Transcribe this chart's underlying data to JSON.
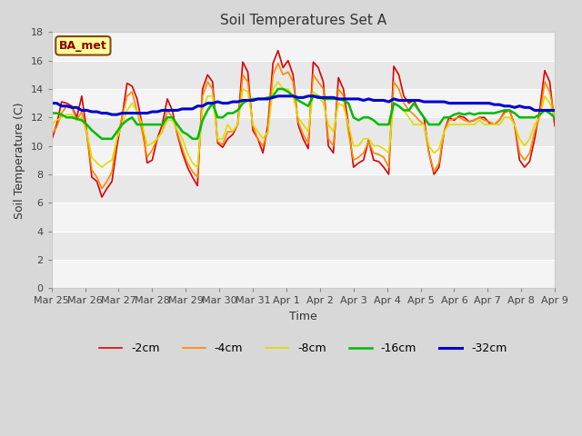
{
  "title": "Soil Temperatures Set A",
  "xlabel": "Time",
  "ylabel": "Soil Temperature (C)",
  "annotation": "BA_met",
  "ylim": [
    0,
    18
  ],
  "yticks": [
    0,
    2,
    4,
    6,
    8,
    10,
    12,
    14,
    16,
    18
  ],
  "fig_bg_color": "#d8d8d8",
  "plot_bg_color_light": "#e8e8e8",
  "plot_bg_color_dark": "#f8f8f8",
  "grid_color": "#ffffff",
  "legend_labels": [
    "-2cm",
    "-4cm",
    "-8cm",
    "-16cm",
    "-32cm"
  ],
  "line_colors": [
    "#dd0000",
    "#ff8800",
    "#dddd00",
    "#00bb00",
    "#0000cc"
  ],
  "line_widths": [
    1.2,
    1.2,
    1.2,
    1.8,
    2.2
  ],
  "x_labels": [
    "Mar 25",
    "Mar 26",
    "Mar 27",
    "Mar 28",
    "Mar 29",
    "Mar 30",
    "Mar 31",
    "Apr 1",
    "Apr 2",
    "Apr 3",
    "Apr 4",
    "Apr 5",
    "Apr 6",
    "Apr 7",
    "Apr 8",
    "Apr 9"
  ],
  "t_2cm": [
    10.4,
    11.5,
    13.1,
    13.0,
    12.8,
    12.0,
    13.5,
    11.0,
    7.8,
    7.5,
    6.4,
    7.0,
    7.5,
    10.0,
    12.0,
    14.4,
    14.2,
    13.3,
    11.5,
    8.8,
    9.0,
    10.5,
    11.5,
    13.3,
    12.5,
    10.8,
    9.5,
    8.5,
    7.8,
    7.2,
    14.0,
    15.0,
    14.5,
    10.2,
    9.9,
    10.5,
    10.8,
    11.5,
    15.9,
    15.2,
    11.1,
    10.5,
    9.5,
    11.5,
    15.8,
    16.7,
    15.5,
    16.0,
    15.0,
    11.5,
    10.5,
    9.8,
    15.9,
    15.5,
    14.5,
    10.0,
    9.5,
    14.8,
    14.0,
    11.5,
    8.5,
    8.8,
    9.0,
    10.4,
    9.0,
    8.9,
    8.5,
    8.0,
    15.6,
    15.0,
    13.5,
    13.0,
    13.2,
    12.5,
    12.0,
    9.5,
    8.0,
    8.5,
    11.0,
    12.0,
    11.8,
    12.1,
    12.0,
    11.7,
    11.8,
    12.0,
    12.0,
    11.6,
    11.5,
    11.8,
    12.4,
    12.5,
    11.5,
    9.0,
    8.5,
    8.9,
    10.5,
    12.5,
    15.3,
    14.5,
    11.4
  ],
  "t_4cm": [
    10.8,
    11.3,
    12.3,
    12.8,
    12.7,
    11.8,
    12.4,
    10.8,
    8.3,
    7.8,
    7.0,
    7.5,
    8.2,
    10.5,
    12.0,
    13.5,
    13.8,
    12.4,
    11.0,
    9.2,
    9.7,
    10.5,
    11.0,
    12.5,
    12.0,
    10.9,
    9.8,
    8.8,
    8.2,
    7.8,
    13.5,
    14.5,
    14.0,
    10.3,
    10.1,
    11.0,
    11.0,
    11.5,
    15.0,
    14.5,
    11.4,
    10.5,
    10.0,
    11.0,
    15.0,
    15.8,
    15.0,
    15.2,
    14.5,
    11.7,
    10.8,
    10.2,
    15.0,
    14.5,
    14.0,
    10.5,
    10.0,
    14.0,
    13.5,
    11.0,
    9.0,
    9.2,
    9.5,
    10.3,
    9.5,
    9.4,
    9.2,
    8.5,
    14.5,
    14.0,
    13.0,
    12.5,
    12.2,
    11.8,
    11.5,
    9.5,
    8.2,
    8.8,
    11.0,
    11.8,
    11.9,
    12.0,
    11.8,
    11.7,
    11.8,
    12.0,
    11.8,
    11.7,
    11.5,
    11.8,
    12.3,
    12.5,
    11.5,
    9.5,
    9.0,
    9.5,
    11.0,
    12.0,
    14.5,
    13.8,
    12.0
  ],
  "t_8cm": [
    11.5,
    11.8,
    12.0,
    12.2,
    12.2,
    11.8,
    12.0,
    11.0,
    9.2,
    8.8,
    8.5,
    8.8,
    9.0,
    10.5,
    11.5,
    12.5,
    13.0,
    12.4,
    11.5,
    10.0,
    10.2,
    10.5,
    11.0,
    11.8,
    11.8,
    11.1,
    10.5,
    9.5,
    8.8,
    8.5,
    12.5,
    13.5,
    13.5,
    10.5,
    10.5,
    11.5,
    11.0,
    11.5,
    14.0,
    13.8,
    11.5,
    11.0,
    10.5,
    11.0,
    14.0,
    14.5,
    14.0,
    14.0,
    13.5,
    12.0,
    11.5,
    11.0,
    13.8,
    13.5,
    13.0,
    11.5,
    11.0,
    13.0,
    12.8,
    11.5,
    10.0,
    10.0,
    10.5,
    10.5,
    10.0,
    10.0,
    9.8,
    9.5,
    13.0,
    12.8,
    12.5,
    12.0,
    11.5,
    11.5,
    11.5,
    10.0,
    9.5,
    9.8,
    11.0,
    11.5,
    11.5,
    11.5,
    11.5,
    11.5,
    11.5,
    11.8,
    11.5,
    11.5,
    11.5,
    11.5,
    12.0,
    12.0,
    11.5,
    10.5,
    10.0,
    10.5,
    11.5,
    12.0,
    13.5,
    13.0,
    12.0
  ],
  "t_16cm": [
    12.3,
    12.3,
    12.2,
    12.0,
    12.0,
    11.9,
    11.8,
    11.5,
    11.1,
    10.8,
    10.5,
    10.5,
    10.5,
    11.0,
    11.5,
    11.8,
    12.0,
    11.5,
    11.5,
    11.5,
    11.5,
    11.5,
    11.5,
    12.0,
    12.0,
    11.5,
    11.0,
    10.8,
    10.5,
    10.5,
    11.8,
    12.5,
    13.0,
    12.0,
    12.0,
    12.3,
    12.3,
    12.5,
    13.0,
    13.2,
    13.3,
    13.3,
    13.3,
    13.4,
    13.5,
    14.0,
    14.0,
    13.8,
    13.5,
    13.2,
    13.0,
    12.8,
    13.5,
    13.5,
    13.3,
    13.3,
    13.3,
    13.3,
    13.2,
    13.0,
    12.0,
    11.8,
    12.0,
    12.0,
    11.8,
    11.5,
    11.5,
    11.5,
    13.0,
    12.8,
    12.5,
    12.5,
    13.0,
    12.5,
    12.0,
    11.5,
    11.5,
    11.5,
    12.0,
    12.0,
    12.2,
    12.3,
    12.2,
    12.3,
    12.2,
    12.3,
    12.3,
    12.3,
    12.3,
    12.4,
    12.5,
    12.5,
    12.3,
    12.0,
    12.0,
    12.0,
    12.0,
    12.2,
    12.5,
    12.3,
    12.0
  ],
  "t_32cm": [
    13.0,
    13.0,
    12.8,
    12.8,
    12.7,
    12.7,
    12.5,
    12.5,
    12.4,
    12.4,
    12.3,
    12.3,
    12.2,
    12.2,
    12.3,
    12.3,
    12.3,
    12.3,
    12.3,
    12.3,
    12.4,
    12.4,
    12.5,
    12.5,
    12.5,
    12.5,
    12.6,
    12.6,
    12.6,
    12.8,
    12.8,
    13.0,
    13.0,
    13.1,
    13.0,
    13.0,
    13.1,
    13.1,
    13.2,
    13.2,
    13.2,
    13.3,
    13.3,
    13.3,
    13.4,
    13.5,
    13.5,
    13.5,
    13.5,
    13.4,
    13.4,
    13.5,
    13.5,
    13.4,
    13.4,
    13.4,
    13.4,
    13.3,
    13.3,
    13.3,
    13.3,
    13.3,
    13.2,
    13.3,
    13.2,
    13.2,
    13.2,
    13.1,
    13.3,
    13.2,
    13.2,
    13.2,
    13.2,
    13.2,
    13.1,
    13.1,
    13.1,
    13.1,
    13.1,
    13.0,
    13.0,
    13.0,
    13.0,
    13.0,
    13.0,
    13.0,
    13.0,
    13.0,
    12.9,
    12.9,
    12.8,
    12.8,
    12.7,
    12.8,
    12.7,
    12.7,
    12.5,
    12.5,
    12.5,
    12.5,
    12.5
  ]
}
